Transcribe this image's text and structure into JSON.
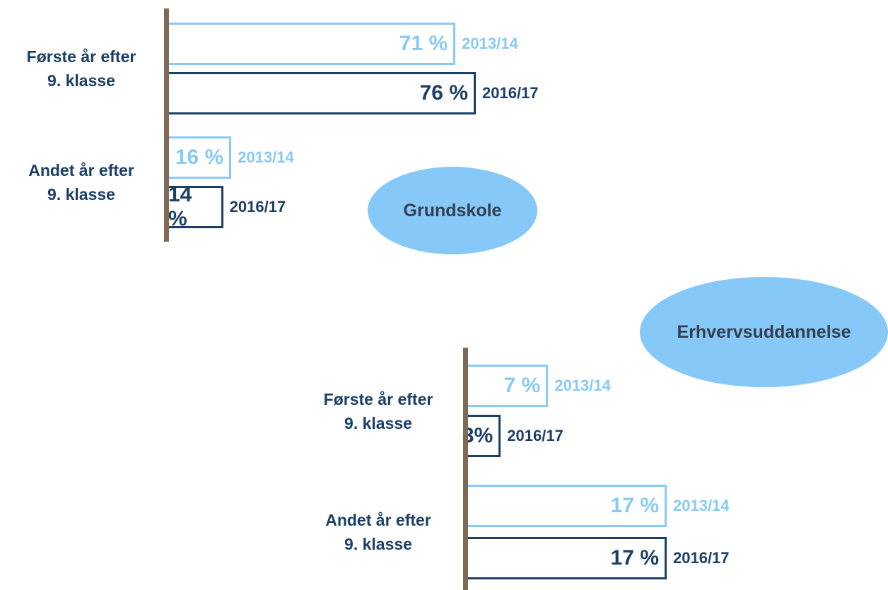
{
  "chart_data": [
    {
      "type": "bar",
      "orientation": "horizontal",
      "title": "Grundskole",
      "categories": [
        "Første år efter\n9. klasse",
        "Andet år efter\n9. klasse"
      ],
      "series": [
        {
          "name": "2013/14",
          "color": "#89c9f7",
          "values": [
            71,
            16
          ],
          "value_labels": [
            "71 %",
            "16 %"
          ]
        },
        {
          "name": "2016/17",
          "color": "#1c3f66",
          "values": [
            76,
            14
          ],
          "value_labels": [
            "76 %",
            "14 %"
          ]
        }
      ]
    },
    {
      "type": "bar",
      "orientation": "horizontal",
      "title": "Erhvervsuddannelse",
      "categories": [
        "Første år efter\n9. klasse",
        "Andet år efter\n9. klasse"
      ],
      "series": [
        {
          "name": "2013/14",
          "color": "#89c9f7",
          "values": [
            7,
            17
          ],
          "value_labels": [
            "7 %",
            "17 %"
          ]
        },
        {
          "name": "2016/17",
          "color": "#1c3f66",
          "values": [
            3,
            17
          ],
          "value_labels": [
            "3%",
            "17 %"
          ]
        }
      ]
    }
  ]
}
